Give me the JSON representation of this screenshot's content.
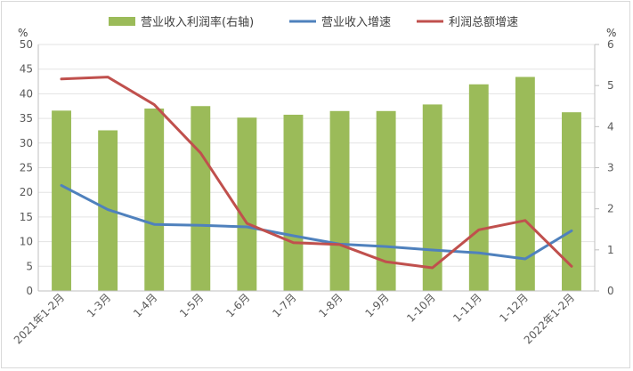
{
  "chart_data": {
    "type": "bar",
    "categories": [
      "2021年1-2月",
      "1-3月",
      "1-4月",
      "1-5月",
      "1-6月",
      "1-7月",
      "1-8月",
      "1-9月",
      "1-10月",
      "1-11月",
      "1-12月",
      "2022年1-2月"
    ],
    "left_axis": {
      "unit": "%",
      "min": 0,
      "max": 50,
      "step": 5
    },
    "right_axis": {
      "unit": "%",
      "min": 0,
      "max": 6,
      "step": 1
    },
    "series": [
      {
        "name": "营业收入利润率(右轴)",
        "type": "bar",
        "axis": "right",
        "color": "#9bbb59",
        "values": [
          4.39,
          3.91,
          4.44,
          4.5,
          4.22,
          4.29,
          4.38,
          4.38,
          4.54,
          5.03,
          5.21,
          4.35
        ]
      },
      {
        "name": "营业收入增速",
        "type": "line",
        "axis": "left",
        "color": "#4f81bd",
        "values": [
          21.4,
          16.5,
          13.5,
          13.3,
          13.0,
          11.2,
          9.5,
          9.0,
          8.3,
          7.7,
          6.5,
          12.2
        ]
      },
      {
        "name": "利润总额增速",
        "type": "line",
        "axis": "left",
        "color": "#c0504d",
        "values": [
          43.0,
          43.4,
          37.8,
          28.0,
          13.7,
          9.8,
          9.4,
          5.9,
          4.7,
          12.4,
          14.3,
          5.0
        ]
      }
    ],
    "grid": true,
    "legend": "top"
  }
}
